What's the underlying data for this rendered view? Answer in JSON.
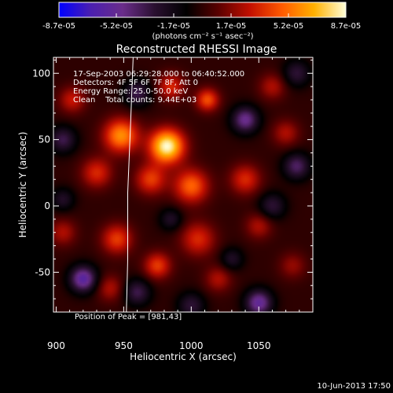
{
  "chart_data": {
    "type": "heatmap",
    "title": "Reconstructed RHESSI Image",
    "xlabel": "Heliocentric X (arcsec)",
    "ylabel": "Heliocentric Y (arcsec)",
    "xlim": [
      898,
      1090
    ],
    "ylim": [
      -80,
      112
    ],
    "x_ticks": [
      900,
      950,
      1000,
      1050
    ],
    "y_ticks": [
      -50,
      0,
      50,
      100
    ],
    "colorbar": {
      "min": -8.7e-05,
      "max": 8.7e-05,
      "tick_labels": [
        "-8.7e-05",
        "-5.2e-05",
        "-1.7e-05",
        "1.7e-05",
        "5.2e-05",
        "8.7e-05"
      ],
      "unit_label": "(photons cm⁻² s⁻¹ asec⁻²)",
      "colors": [
        "#0000ff",
        "#4b1fb0",
        "#6a2d8a",
        "#2a1030",
        "#000000",
        "#5a0000",
        "#c41000",
        "#ff5a00",
        "#ffb000",
        "#ffffd8"
      ]
    },
    "annotations": [
      "17-Sep-2003 06:29:28.000 to 06:40:52.000",
      "Detectors: 4F 5F 6F 7F 8F, Att 0",
      "Energy Range: 25.0-50.0 keV",
      "Clean    Total counts: 9.44E+03"
    ],
    "peak_label": "Position of Peak = [981,43]",
    "peak": [
      981,
      43
    ],
    "limb": [
      [
        957,
        112
      ],
      [
        955,
        60
      ],
      [
        953,
        10
      ],
      [
        953,
        -40
      ],
      [
        952,
        -80
      ]
    ],
    "sources": [
      {
        "x": 982,
        "y": 45,
        "amp": 8.7e-05,
        "w": 9
      },
      {
        "x": 948,
        "y": 53,
        "amp": 6e-05,
        "w": 9
      },
      {
        "x": 1012,
        "y": 80,
        "amp": 4.5e-05,
        "w": 6
      },
      {
        "x": 985,
        "y": 90,
        "amp": 3.5e-05,
        "w": 7
      },
      {
        "x": 912,
        "y": 80,
        "amp": 3e-05,
        "w": 7
      },
      {
        "x": 1000,
        "y": 15,
        "amp": 5e-05,
        "w": 9
      },
      {
        "x": 970,
        "y": 20,
        "amp": 4e-05,
        "w": 8
      },
      {
        "x": 930,
        "y": 25,
        "amp": 3.5e-05,
        "w": 8
      },
      {
        "x": 1040,
        "y": 20,
        "amp": 3.5e-05,
        "w": 8
      },
      {
        "x": 1070,
        "y": 55,
        "amp": 2.5e-05,
        "w": 7
      },
      {
        "x": 1060,
        "y": 90,
        "amp": 2.5e-05,
        "w": 7
      },
      {
        "x": 945,
        "y": -25,
        "amp": 4e-05,
        "w": 8
      },
      {
        "x": 1005,
        "y": -25,
        "amp": 3.5e-05,
        "w": 9
      },
      {
        "x": 1050,
        "y": -15,
        "amp": 2.5e-05,
        "w": 7
      },
      {
        "x": 975,
        "y": -45,
        "amp": 4e-05,
        "w": 7
      },
      {
        "x": 905,
        "y": -20,
        "amp": 2.5e-05,
        "w": 7
      },
      {
        "x": 1020,
        "y": -55,
        "amp": 2.5e-05,
        "w": 7
      },
      {
        "x": 940,
        "y": -62,
        "amp": 2.5e-05,
        "w": 7
      },
      {
        "x": 1075,
        "y": -45,
        "amp": 2e-05,
        "w": 7
      },
      {
        "x": 960,
        "y": 85,
        "amp": -3.5e-05,
        "w": 7
      },
      {
        "x": 1040,
        "y": 65,
        "amp": -5e-05,
        "w": 7
      },
      {
        "x": 1078,
        "y": 100,
        "amp": -3e-05,
        "w": 7
      },
      {
        "x": 1078,
        "y": 30,
        "amp": -4e-05,
        "w": 7
      },
      {
        "x": 1060,
        "y": 0,
        "amp": -3e-05,
        "w": 7
      },
      {
        "x": 920,
        "y": -55,
        "amp": -6e-05,
        "w": 7
      },
      {
        "x": 960,
        "y": -65,
        "amp": -3.5e-05,
        "w": 7
      },
      {
        "x": 1050,
        "y": -73,
        "amp": -5.5e-05,
        "w": 7
      },
      {
        "x": 1000,
        "y": -75,
        "amp": -3e-05,
        "w": 7
      },
      {
        "x": 905,
        "y": 50,
        "amp": -3.5e-05,
        "w": 7
      },
      {
        "x": 985,
        "y": -10,
        "amp": -2.5e-05,
        "w": 6
      },
      {
        "x": 905,
        "y": 5,
        "amp": -2.5e-05,
        "w": 6
      },
      {
        "x": 1030,
        "y": -40,
        "amp": -2.5e-05,
        "w": 6
      }
    ]
  },
  "footer": {
    "date": "10-Jun-2013 17:50"
  }
}
